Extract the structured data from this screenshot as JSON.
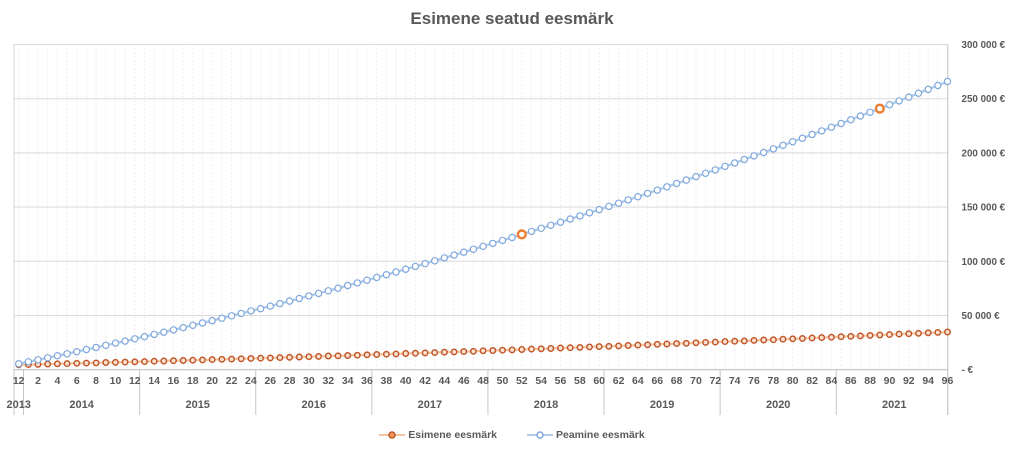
{
  "title": "Esimene seatud eesmärk",
  "chart_data": {
    "type": "line",
    "title": "Esimene seatud eesmärk",
    "ylim": [
      0,
      300000
    ],
    "y_tick_labels": [
      "- €",
      "50 000 €",
      "100 000 €",
      "150 000 €",
      "200 000 €",
      "250 000 €",
      "300 000 €"
    ],
    "x_tick_labels": [
      "12",
      "2",
      "4",
      "6",
      "8",
      "10",
      "12",
      "14",
      "16",
      "18",
      "20",
      "22",
      "24",
      "26",
      "28",
      "30",
      "32",
      "34",
      "36",
      "38",
      "40",
      "42",
      "44",
      "46",
      "48",
      "50",
      "52",
      "54",
      "56",
      "58",
      "60",
      "62",
      "64",
      "66",
      "68",
      "70",
      "72",
      "74",
      "76",
      "78",
      "80",
      "82",
      "84",
      "86",
      "88",
      "90",
      "92",
      "94",
      "96"
    ],
    "year_groups": [
      {
        "label": "2013",
        "from": 0,
        "to": 0
      },
      {
        "label": "2014",
        "from": 1,
        "to": 12
      },
      {
        "label": "2015",
        "from": 13,
        "to": 24
      },
      {
        "label": "2016",
        "from": 25,
        "to": 36
      },
      {
        "label": "2017",
        "from": 37,
        "to": 48
      },
      {
        "label": "2018",
        "from": 49,
        "to": 60
      },
      {
        "label": "2019",
        "from": 61,
        "to": 72
      },
      {
        "label": "2020",
        "from": 73,
        "to": 84
      },
      {
        "label": "2021",
        "from": 85,
        "to": 96
      }
    ],
    "series": [
      {
        "name": "Esimene eesmärk",
        "line_color": "#F6C5A0",
        "marker_stroke": "#C0572B",
        "marker_fill": "#FAE3D2",
        "values": [
          4500,
          4700,
          4900,
          5200,
          5400,
          5600,
          5900,
          6100,
          6300,
          6600,
          6800,
          7000,
          7300,
          7500,
          7800,
          8000,
          8300,
          8500,
          8800,
          9000,
          9300,
          9600,
          9800,
          10100,
          10400,
          10600,
          10900,
          11200,
          11400,
          11700,
          12000,
          12300,
          12600,
          12800,
          13100,
          13400,
          13700,
          14000,
          14300,
          14600,
          14900,
          15200,
          15500,
          15800,
          16100,
          16400,
          16700,
          17000,
          17400,
          17700,
          18000,
          18300,
          18600,
          19000,
          19300,
          19600,
          20000,
          20300,
          20600,
          21000,
          21300,
          21600,
          22000,
          22300,
          22700,
          23000,
          23400,
          23700,
          24100,
          24400,
          24800,
          25200,
          25500,
          25900,
          26300,
          26600,
          27000,
          27400,
          27700,
          28100,
          28500,
          28900,
          29300,
          29600,
          30000,
          30400,
          30800,
          31200,
          31600,
          32000,
          32400,
          32800,
          33200,
          33600,
          34000,
          34400,
          34800
        ]
      },
      {
        "name": "Peamine eesmärk",
        "line_color": "#AECBEA",
        "marker_stroke": "#7FA8DC",
        "marker_fill": "#FFFFFF",
        "values": [
          5500,
          7300,
          9100,
          11000,
          12900,
          14700,
          16600,
          18600,
          20500,
          22500,
          24500,
          26400,
          28500,
          30500,
          32600,
          34600,
          36700,
          38800,
          41000,
          43100,
          45300,
          47500,
          49700,
          51900,
          54200,
          56400,
          58700,
          61000,
          63300,
          65700,
          68100,
          70400,
          72800,
          75200,
          77700,
          80100,
          82600,
          85100,
          87600,
          90100,
          92700,
          95300,
          97900,
          100500,
          103100,
          105700,
          108400,
          111100,
          113800,
          116500,
          119300,
          122000,
          124800,
          127600,
          130400,
          133200,
          136100,
          139000,
          141900,
          144800,
          147700,
          150600,
          153600,
          156600,
          159600,
          162600,
          165700,
          168700,
          171800,
          174900,
          178100,
          181200,
          184300,
          187500,
          190700,
          193900,
          197200,
          200400,
          203700,
          207000,
          210300,
          213600,
          217000,
          220300,
          223700,
          227100,
          230600,
          234000,
          237500,
          240900,
          244500,
          248000,
          251500,
          255100,
          258600,
          262200,
          265900
        ]
      }
    ],
    "highlight_points": [
      {
        "series": "Peamine eesmärk",
        "month": 52,
        "value": 124800
      },
      {
        "series": "Peamine eesmärk",
        "month": 89,
        "value": 240900
      }
    ],
    "highlight_color": "#ED7D31",
    "legend_position": "bottom",
    "colors": {
      "grid_major": "#D9D9D9",
      "grid_minor_dashed": "#EBEBEB",
      "axis_line": "#BFBFBF",
      "separator": "#C6C6C6",
      "text": "#595959"
    }
  }
}
